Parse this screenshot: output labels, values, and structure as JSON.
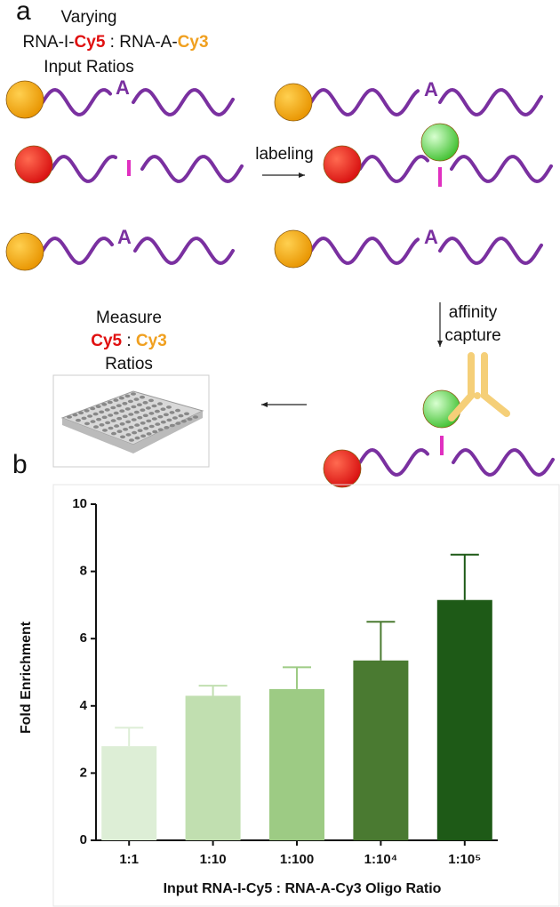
{
  "panel_a": {
    "label": "a",
    "heading": {
      "line1": "Varying",
      "line2": [
        "RNA-I-",
        "Cy5",
        " : RNA-A-",
        "Cy3"
      ],
      "line3": "Input Ratios"
    },
    "modified_base_labels": [
      "A",
      "A",
      "A",
      "A"
    ],
    "step1": "labeling",
    "step2": [
      "affinity",
      "capture"
    ],
    "measure": {
      "line1": "Measure",
      "line2": [
        "Cy5",
        " : ",
        "Cy3"
      ],
      "line3": "Ratios"
    }
  },
  "chart_data": {
    "type": "bar",
    "panel_label": "b",
    "categories": [
      "1:1",
      "1:10",
      "1:100",
      "1:10⁴",
      "1:10⁵"
    ],
    "values": [
      2.8,
      4.3,
      4.5,
      5.35,
      7.15
    ],
    "errors": [
      0.55,
      0.3,
      0.65,
      1.15,
      1.35
    ],
    "colors": [
      "#ddeed6",
      "#c1dfb0",
      "#9dcb84",
      "#4a7a31",
      "#1e5a17"
    ],
    "ylim": [
      0,
      10
    ],
    "yticks": [
      0,
      2,
      4,
      6,
      8,
      10
    ],
    "ylabel": "Fold Enrichment",
    "xlabel": "Input RNA-I-Cy5 : RNA-A-Cy3 Oligo Ratio"
  }
}
